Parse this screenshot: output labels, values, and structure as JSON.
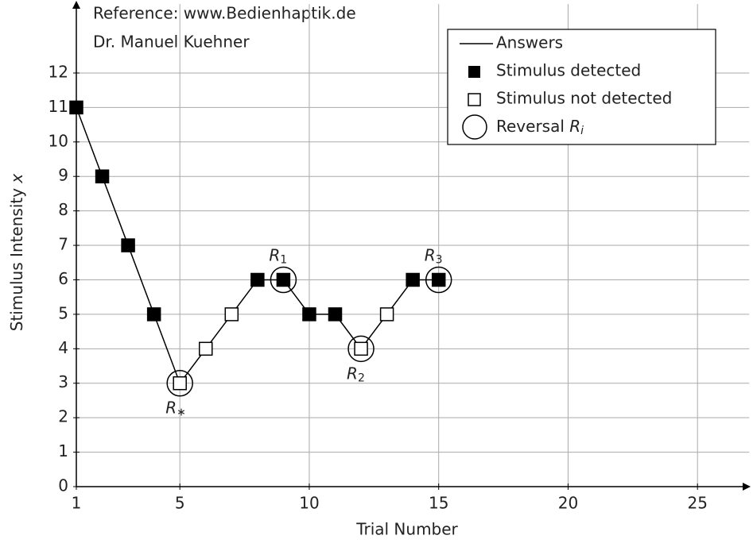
{
  "chart_data": {
    "type": "staircase",
    "notes": [
      "Reference: www.Bedienhaptik.de",
      "Dr. Manuel Kuehner"
    ],
    "xlabel": "Trial Number",
    "ylabel": "Stimulus Intensity",
    "ylabel_var": "x",
    "x": [
      1,
      2,
      3,
      4,
      5,
      6,
      7,
      8,
      9,
      10,
      11,
      12,
      13,
      14,
      15
    ],
    "values": [
      11,
      9,
      7,
      5,
      3,
      4,
      5,
      6,
      6,
      5,
      5,
      4,
      5,
      6,
      6
    ],
    "detected": [
      true,
      true,
      true,
      true,
      false,
      false,
      false,
      true,
      true,
      true,
      true,
      false,
      false,
      true,
      true
    ],
    "reversals": [
      {
        "trial": 5,
        "label": "R",
        "subscript": "∗"
      },
      {
        "trial": 9,
        "label": "R",
        "subscript": "1"
      },
      {
        "trial": 12,
        "label": "R",
        "subscript": "2"
      },
      {
        "trial": 15,
        "label": "R",
        "subscript": "3"
      }
    ],
    "legend": {
      "line": "Answers",
      "detected": "Stimulus detected",
      "not_detected": "Stimulus not detected",
      "reversal": "Reversal",
      "reversal_var": "R",
      "reversal_sub": "i"
    },
    "color": "#000000",
    "xlim": [
      1,
      27
    ],
    "ylim": [
      0,
      14
    ],
    "xticks": [
      1,
      5,
      10,
      15,
      20,
      25
    ],
    "yticks": [
      0,
      1,
      2,
      3,
      4,
      5,
      6,
      7,
      8,
      9,
      10,
      11,
      12
    ],
    "grid": true
  }
}
